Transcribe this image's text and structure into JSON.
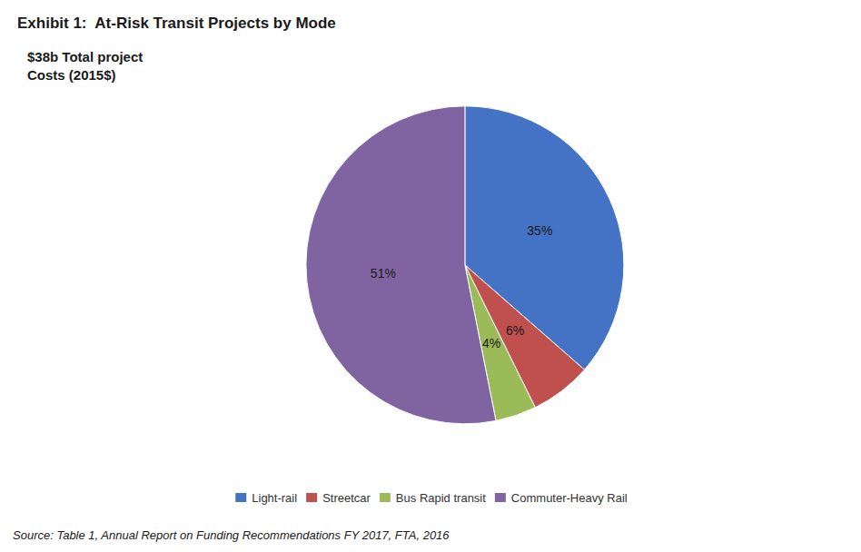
{
  "chart_data": {
    "type": "pie",
    "title": "Exhibit 1:  At-Risk Transit Projects by Mode",
    "annotation": "$38b Total project\nCosts (2015$)",
    "source": "Source: Table 1, Annual Report on Funding Recommendations FY 2017, FTA, 2016",
    "categories": [
      "Light-rail",
      "Streetcar",
      "Bus Rapid transit",
      "Commuter-Heavy Rail"
    ],
    "values": [
      35,
      6,
      4,
      51
    ],
    "value_labels": [
      "35%",
      "6%",
      "4%",
      "51%"
    ],
    "colors": [
      "#4472C4",
      "#C0504D",
      "#9BBB59",
      "#8064A2"
    ],
    "data_labels": true,
    "legend": "bottom"
  }
}
